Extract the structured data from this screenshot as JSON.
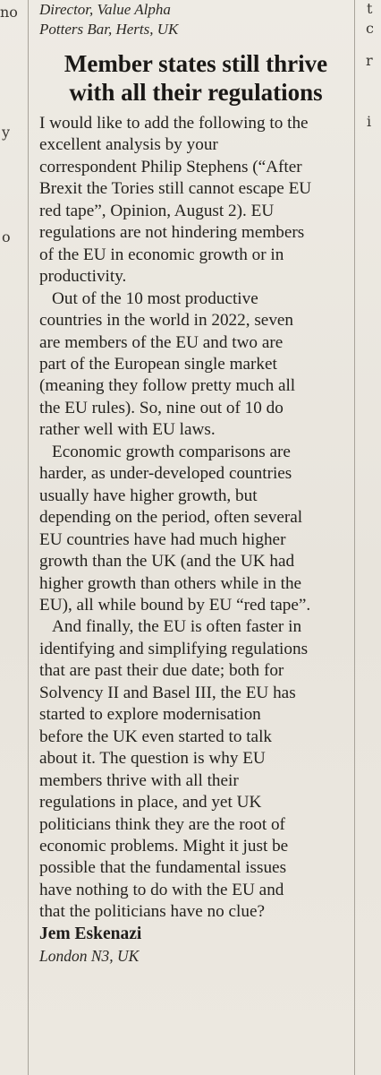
{
  "previous_letter": {
    "signature_lines": [
      "Director, Value Alpha",
      "Potters Bar, Herts, UK"
    ]
  },
  "letter": {
    "headline_lines": [
      "Member states still thrive",
      "with all their regulations"
    ],
    "paragraphs": [
      [
        "I would like to add the following to the",
        "excellent analysis by your",
        "correspondent Philip Stephens (“After",
        "Brexit the Tories still cannot escape EU",
        "red tape”, Opinion, August 2). EU",
        "regulations are not hindering members",
        "of the EU in economic growth or in",
        "productivity."
      ],
      [
        "Out of the 10 most productive",
        "countries in the world in 2022, seven",
        "are members of the EU and two are",
        "part of the European single market",
        "(meaning they follow pretty much all",
        "the EU rules). So, nine out of 10 do",
        "rather well with EU laws."
      ],
      [
        "Economic growth comparisons are",
        "harder, as under-developed countries",
        "usually have higher growth, but",
        "depending on the period, often several",
        "EU countries have had much higher",
        "growth than the UK (and the UK had",
        "higher growth than others while in the",
        "EU), all while bound by EU “red tape”."
      ],
      [
        "And finally, the EU is often faster in",
        "identifying and simplifying regulations",
        "that are past their due date; both for",
        "Solvency II and Basel III, the EU has",
        "started to explore modernisation",
        "before the UK even started to talk",
        "about it. The question is why EU",
        "members thrive with all their",
        "regulations in place, and yet UK",
        "politicians think they are the root of",
        "economic problems. Might it just be",
        "possible that the fundamental issues",
        "have nothing to do with the EU and",
        "that the politicians have no clue?"
      ]
    ],
    "author": "Jem Eskenazi",
    "location": "London N3, UK"
  },
  "left_column_fragments": [
    "no",
    "y",
    "o"
  ],
  "right_column_fragments": [
    "t",
    "c",
    "r",
    "i"
  ]
}
